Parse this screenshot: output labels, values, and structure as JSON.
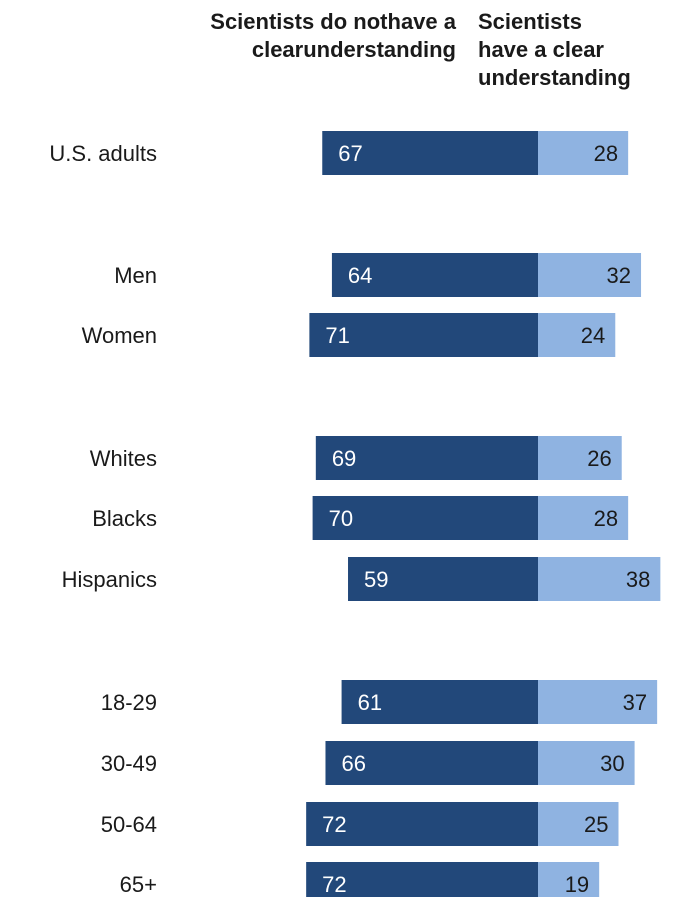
{
  "colors": {
    "left_bar": "#22487a",
    "right_bar": "#8fb3e1",
    "left_text": "#ffffff",
    "right_text": "#1a1a1a"
  },
  "chart_data": {
    "type": "bar",
    "orientation": "horizontal-diverging",
    "series": [
      {
        "name": "Scientists do not have a clear understanding",
        "values": [
          67,
          64,
          71,
          69,
          70,
          59,
          61,
          66,
          72,
          72
        ]
      },
      {
        "name": "Scientists have a clear understanding",
        "values": [
          28,
          32,
          24,
          26,
          28,
          38,
          37,
          30,
          25,
          19
        ]
      }
    ],
    "categories": [
      "U.S. adults",
      "Men",
      "Women",
      "Whites",
      "Blacks",
      "Hispanics",
      "18-29",
      "30-49",
      "50-64",
      "65+"
    ],
    "groups": [
      [
        0
      ],
      [
        1,
        2
      ],
      [
        3,
        4,
        5
      ],
      [
        6,
        7,
        8,
        9
      ]
    ],
    "legend": "top"
  }
}
